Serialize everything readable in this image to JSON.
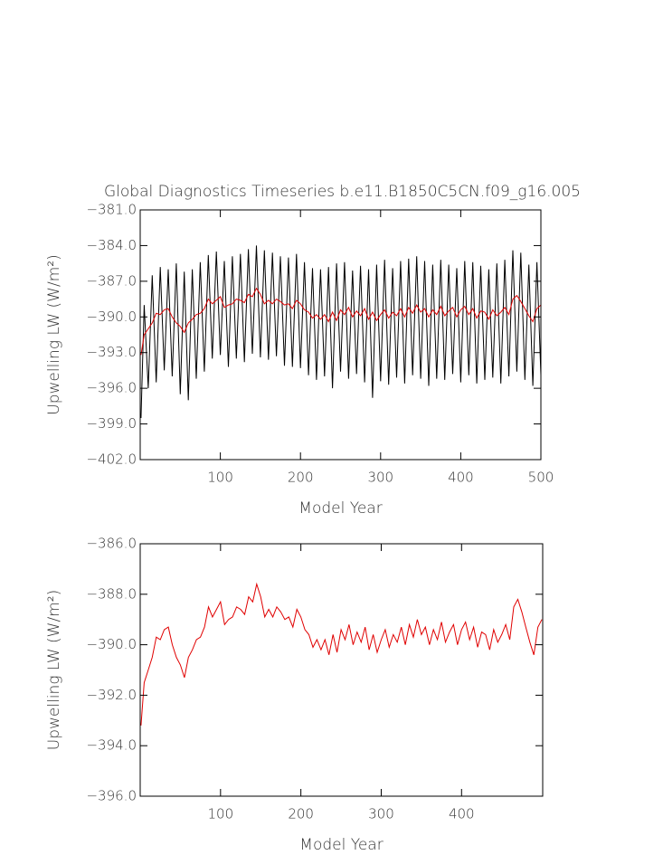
{
  "chart_data": [
    {
      "type": "line",
      "title": "Global Diagnostics Timeseries b.e11.B1850C5CN.f09_g16.005",
      "x_label": "Model Year",
      "y_label": "Upwelling LW (W/m²)",
      "x": [
        1,
        5,
        10,
        15,
        20,
        25,
        30,
        35,
        40,
        45,
        50,
        55,
        60,
        65,
        70,
        75,
        80,
        85,
        90,
        95,
        100,
        105,
        110,
        115,
        120,
        125,
        130,
        135,
        140,
        145,
        150,
        155,
        160,
        165,
        170,
        175,
        180,
        185,
        190,
        195,
        200,
        205,
        210,
        215,
        220,
        225,
        230,
        235,
        240,
        245,
        250,
        255,
        260,
        265,
        270,
        275,
        280,
        285,
        290,
        295,
        300,
        305,
        310,
        315,
        320,
        325,
        330,
        335,
        340,
        345,
        350,
        355,
        360,
        365,
        370,
        375,
        380,
        385,
        390,
        395,
        400,
        405,
        410,
        415,
        420,
        425,
        430,
        435,
        440,
        445,
        450,
        455,
        460,
        465,
        470,
        475,
        480,
        485,
        490,
        495,
        500
      ],
      "series": [
        {
          "color": "#000000",
          "values": [
            -398.5,
            -389,
            -396,
            -386.5,
            -395.5,
            -385.8,
            -394.5,
            -386,
            -395,
            -385.5,
            -396.5,
            -386.2,
            -397,
            -386,
            -395.2,
            -385.4,
            -394.6,
            -384.8,
            -393.5,
            -384.5,
            -393.2,
            -385.3,
            -394.2,
            -384.9,
            -393.5,
            -384.7,
            -393.8,
            -384.3,
            -393.1,
            -384,
            -393.4,
            -384.4,
            -393.6,
            -384.6,
            -393.3,
            -384.9,
            -394.1,
            -385,
            -394.2,
            -384.7,
            -394.3,
            -385.4,
            -394.9,
            -385.9,
            -395.3,
            -386,
            -395,
            -385.8,
            -396,
            -385.5,
            -394.6,
            -385.4,
            -395.2,
            -386.1,
            -394.8,
            -385.7,
            -395.5,
            -386,
            -396.8,
            -385.6,
            -395.4,
            -385.2,
            -395.7,
            -385.9,
            -395.1,
            -385.3,
            -395.6,
            -385.1,
            -394.9,
            -384.9,
            -395.2,
            -385.3,
            -395.8,
            -385.6,
            -395.2,
            -385.2,
            -395.3,
            -385.6,
            -394.8,
            -385.9,
            -395.5,
            -385.3,
            -394.9,
            -385.4,
            -395.6,
            -385.7,
            -395.3,
            -386,
            -395.1,
            -385.5,
            -395.6,
            -385.2,
            -395,
            -384.4,
            -394.6,
            -384.6,
            -395.3,
            -385.6,
            -395.8,
            -385.4,
            -394.9
          ]
        },
        {
          "color": "#e00000",
          "values": [
            -393.2,
            -391.5,
            -391,
            -390.5,
            -389.7,
            -389.8,
            -389.4,
            -389.3,
            -390,
            -390.5,
            -390.8,
            -391.3,
            -390.5,
            -390.2,
            -389.8,
            -389.7,
            -389.3,
            -388.5,
            -388.9,
            -388.6,
            -388.3,
            -389.2,
            -389,
            -388.9,
            -388.5,
            -388.6,
            -388.8,
            -388.1,
            -388.3,
            -387.6,
            -388.1,
            -388.9,
            -388.6,
            -388.9,
            -388.5,
            -388.7,
            -389,
            -388.9,
            -389.3,
            -388.6,
            -388.9,
            -389.4,
            -389.6,
            -390.1,
            -389.8,
            -390.2,
            -389.8,
            -390.4,
            -389.6,
            -390.3,
            -389.4,
            -389.8,
            -389.2,
            -390,
            -389.5,
            -389.9,
            -389.3,
            -390.2,
            -389.6,
            -390.3,
            -389.8,
            -389.4,
            -390.1,
            -389.6,
            -389.9,
            -389.3,
            -390,
            -389.2,
            -389.7,
            -389,
            -389.6,
            -389.3,
            -390,
            -389.4,
            -389.8,
            -389.1,
            -389.9,
            -389.5,
            -389.2,
            -390,
            -389.4,
            -389.1,
            -389.8,
            -389.3,
            -390.1,
            -389.5,
            -389.6,
            -390.2,
            -389.4,
            -389.9,
            -389.6,
            -389.2,
            -389.8,
            -388.5,
            -388.2,
            -388.7,
            -389.3,
            -389.9,
            -390.4,
            -389.3,
            -389
          ]
        }
      ],
      "xlim": [
        0,
        500
      ],
      "ylim": [
        -402,
        -381
      ],
      "xticks": [
        100,
        200,
        300,
        400,
        500
      ],
      "yticks": [
        {
          "value": -381,
          "label": "−381.0"
        },
        {
          "value": -384,
          "label": "−384.0"
        },
        {
          "value": -387,
          "label": "−387.0"
        },
        {
          "value": -390,
          "label": "−390.0"
        },
        {
          "value": -393,
          "label": "−393.0"
        },
        {
          "value": -396,
          "label": "−396.0"
        },
        {
          "value": -399,
          "label": "−399.0"
        },
        {
          "value": -402,
          "label": "−402.0"
        }
      ]
    },
    {
      "type": "line",
      "x_label": "Model Year",
      "y_label": "Upwelling LW (W/m²)",
      "x": [
        1,
        5,
        10,
        15,
        20,
        25,
        30,
        35,
        40,
        45,
        50,
        55,
        60,
        65,
        70,
        75,
        80,
        85,
        90,
        95,
        100,
        105,
        110,
        115,
        120,
        125,
        130,
        135,
        140,
        145,
        150,
        155,
        160,
        165,
        170,
        175,
        180,
        185,
        190,
        195,
        200,
        205,
        210,
        215,
        220,
        225,
        230,
        235,
        240,
        245,
        250,
        255,
        260,
        265,
        270,
        275,
        280,
        285,
        290,
        295,
        300,
        305,
        310,
        315,
        320,
        325,
        330,
        335,
        340,
        345,
        350,
        355,
        360,
        365,
        370,
        375,
        380,
        385,
        390,
        395,
        400,
        405,
        410,
        415,
        420,
        425,
        430,
        435,
        440,
        445,
        450,
        455,
        460,
        465,
        470,
        475,
        480,
        485,
        490,
        495,
        500
      ],
      "series": [
        {
          "color": "#e00000",
          "values": [
            -393.2,
            -391.5,
            -391,
            -390.5,
            -389.7,
            -389.8,
            -389.4,
            -389.3,
            -390,
            -390.5,
            -390.8,
            -391.3,
            -390.5,
            -390.2,
            -389.8,
            -389.7,
            -389.3,
            -388.5,
            -388.9,
            -388.6,
            -388.3,
            -389.2,
            -389,
            -388.9,
            -388.5,
            -388.6,
            -388.8,
            -388.1,
            -388.3,
            -387.6,
            -388.1,
            -388.9,
            -388.6,
            -388.9,
            -388.5,
            -388.7,
            -389,
            -388.9,
            -389.3,
            -388.6,
            -388.9,
            -389.4,
            -389.6,
            -390.1,
            -389.8,
            -390.2,
            -389.8,
            -390.4,
            -389.6,
            -390.3,
            -389.4,
            -389.8,
            -389.2,
            -390,
            -389.5,
            -389.9,
            -389.3,
            -390.2,
            -389.6,
            -390.3,
            -389.8,
            -389.4,
            -390.1,
            -389.6,
            -389.9,
            -389.3,
            -390,
            -389.2,
            -389.7,
            -389,
            -389.6,
            -389.3,
            -390,
            -389.4,
            -389.8,
            -389.1,
            -389.9,
            -389.5,
            -389.2,
            -390,
            -389.4,
            -389.1,
            -389.8,
            -389.3,
            -390.1,
            -389.5,
            -389.6,
            -390.2,
            -389.4,
            -389.9,
            -389.6,
            -389.2,
            -389.8,
            -388.5,
            -388.2,
            -388.7,
            -389.3,
            -389.9,
            -390.4,
            -389.3,
            -389
          ]
        }
      ],
      "xlim": [
        0,
        501
      ],
      "ylim": [
        -396,
        -386
      ],
      "xticks": [
        100,
        200,
        300,
        400
      ],
      "yticks": [
        {
          "value": -386,
          "label": "−386.0"
        },
        {
          "value": -388,
          "label": "−388.0"
        },
        {
          "value": -390,
          "label": "−390.0"
        },
        {
          "value": -392,
          "label": "−392.0"
        },
        {
          "value": -394,
          "label": "−394.0"
        },
        {
          "value": -396,
          "label": "−396.0"
        }
      ]
    }
  ]
}
